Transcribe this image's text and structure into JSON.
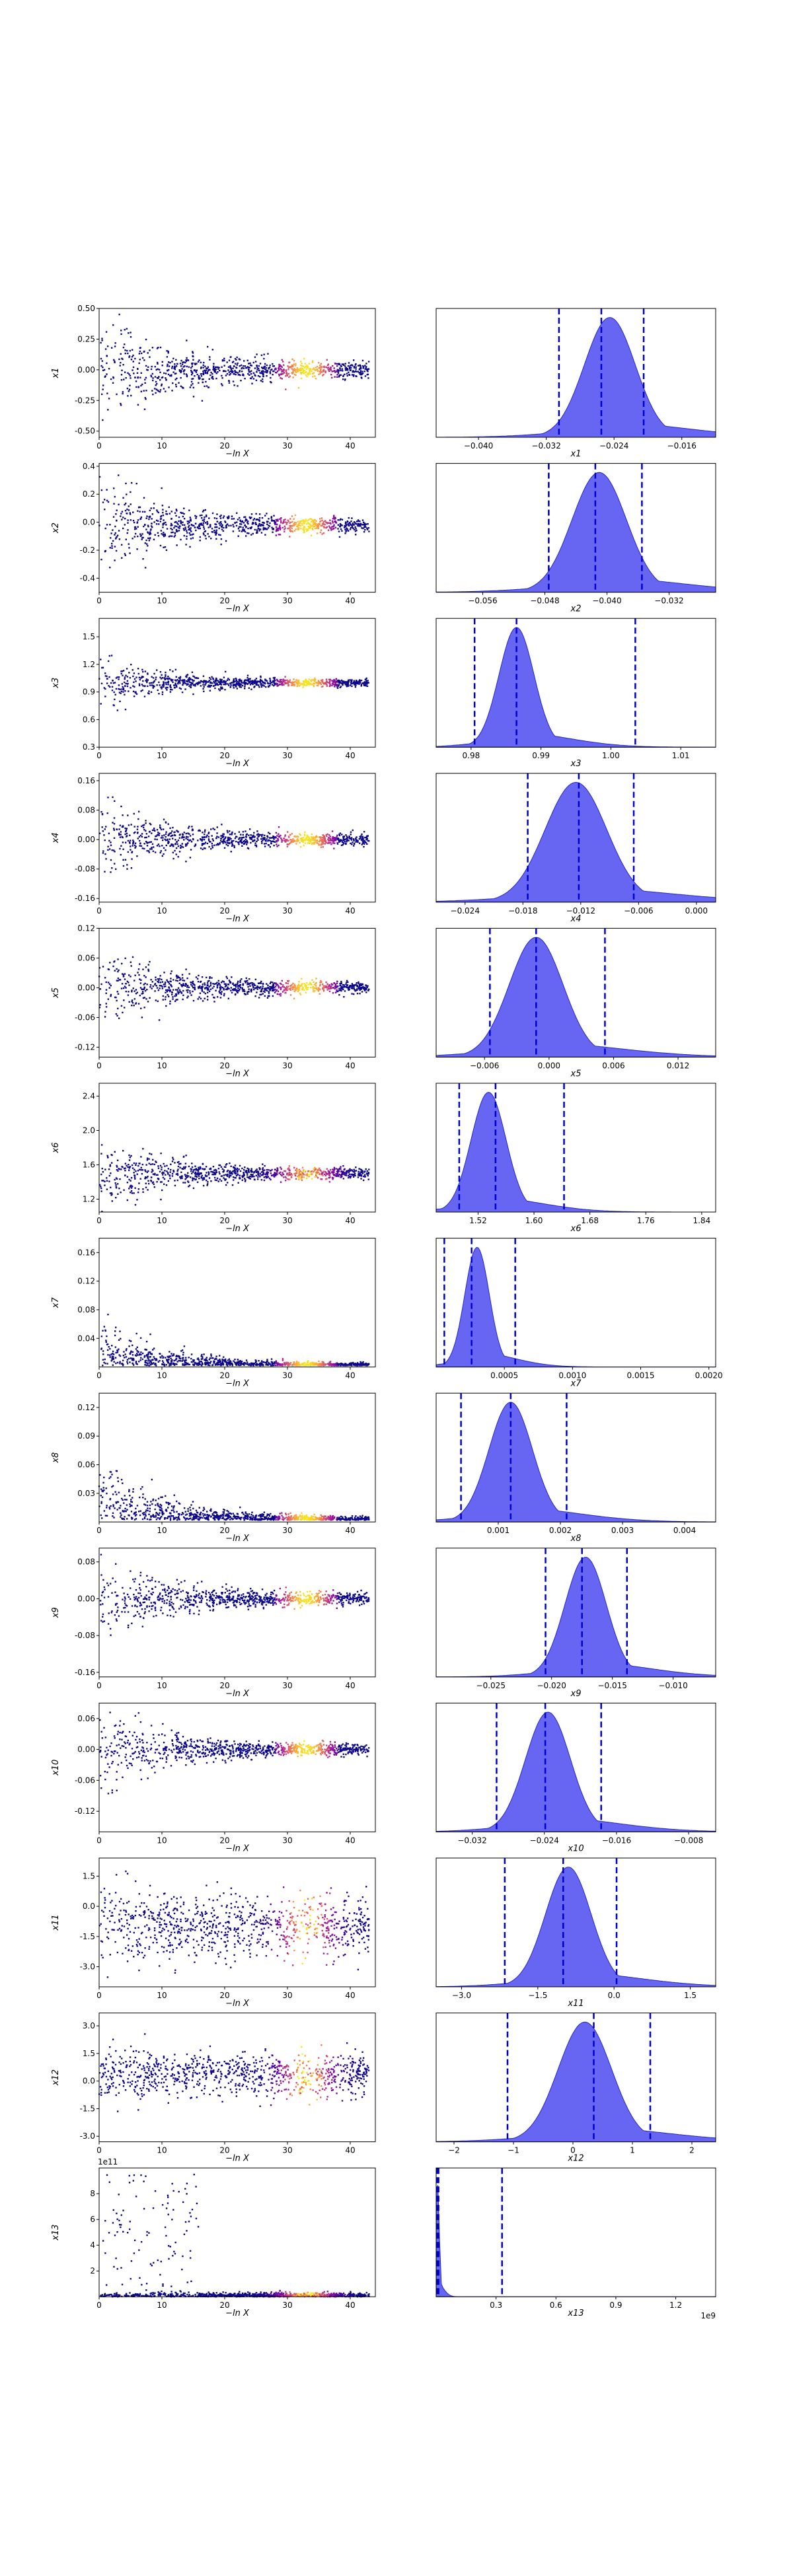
{
  "colors": {
    "trace_low": "#0d0887",
    "trace_mid": "#cc4778",
    "trace_high": "#f0f921",
    "kde_fill": "#3b3bf0",
    "kde_edge": "#2727c8",
    "quantile": "#0000cc"
  },
  "chart_data": {
    "type": "scatter",
    "description_free": true,
    "rows": [
      {
        "ylabel": "x1",
        "trace_yticks": [
          "0.50",
          "0.25",
          "0.00",
          "-0.25",
          "-0.50"
        ],
        "trace_yticks_val": [
          0.5,
          0.25,
          0,
          -0.25,
          -0.5
        ],
        "trace_ylim": [
          -0.55,
          0.5
        ],
        "trace_center": 0.0,
        "trace_spread": 0.25,
        "kde_xticks": [
          "−0.040",
          "−0.032",
          "−0.024",
          "−0.016"
        ],
        "kde_xticks_val": [
          -0.04,
          -0.032,
          -0.024,
          -0.016
        ],
        "kde_xlim": [
          -0.045,
          -0.012
        ],
        "kde_mode": -0.0245,
        "kde_sigma": 0.003,
        "quantiles": [
          -0.0305,
          -0.0255,
          -0.0205
        ],
        "kde_label": "x1"
      },
      {
        "ylabel": "x2",
        "trace_yticks": [
          "0.4",
          "0.2",
          "0.0",
          "-0.2",
          "-0.4"
        ],
        "trace_yticks_val": [
          0.4,
          0.2,
          0,
          -0.2,
          -0.4
        ],
        "trace_ylim": [
          -0.5,
          0.42
        ],
        "trace_center": -0.02,
        "trace_spread": 0.2,
        "kde_xticks": [
          "−0.056",
          "−0.048",
          "−0.040",
          "−0.032"
        ],
        "kde_xticks_val": [
          -0.056,
          -0.048,
          -0.04,
          -0.032
        ],
        "kde_xlim": [
          -0.062,
          -0.026
        ],
        "kde_mode": -0.041,
        "kde_sigma": 0.0035,
        "quantiles": [
          -0.0475,
          -0.0415,
          -0.0355
        ],
        "kde_label": "x2"
      },
      {
        "ylabel": "x3",
        "trace_yticks": [
          "1.5",
          "1.2",
          "0.9",
          "0.6",
          "0.3"
        ],
        "trace_yticks_val": [
          1.5,
          1.2,
          0.9,
          0.6,
          0.3
        ],
        "trace_ylim": [
          0.3,
          1.7
        ],
        "trace_center": 1.0,
        "trace_spread": 0.15,
        "kde_xticks": [
          "0.98",
          "0.99",
          "1.00",
          "1.01"
        ],
        "kde_xticks_val": [
          0.98,
          0.99,
          1.0,
          1.01
        ],
        "kde_xlim": [
          0.975,
          1.015
        ],
        "kde_mode": 0.9865,
        "kde_sigma": 0.0025,
        "quantiles": [
          0.9805,
          0.9865,
          1.0035
        ],
        "kde_label": "x3"
      },
      {
        "ylabel": "x4",
        "trace_yticks": [
          "0.16",
          "0.08",
          "0.00",
          "-0.08",
          "-0.16"
        ],
        "trace_yticks_val": [
          0.16,
          0.08,
          0,
          -0.08,
          -0.16
        ],
        "trace_ylim": [
          -0.17,
          0.18
        ],
        "trace_center": 0.0,
        "trace_spread": 0.06,
        "kde_xticks": [
          "−0.024",
          "−0.018",
          "−0.012",
          "−0.006",
          "0.000"
        ],
        "kde_xticks_val": [
          -0.024,
          -0.018,
          -0.012,
          -0.006,
          0
        ],
        "kde_xlim": [
          -0.027,
          0.002
        ],
        "kde_mode": -0.0125,
        "kde_sigma": 0.0032,
        "quantiles": [
          -0.0175,
          -0.0122,
          -0.0065
        ],
        "kde_label": "x4"
      },
      {
        "ylabel": "x5",
        "trace_yticks": [
          "0.12",
          "0.06",
          "0.00",
          "-0.06",
          "-0.12"
        ],
        "trace_yticks_val": [
          0.12,
          0.06,
          0,
          -0.06,
          -0.12
        ],
        "trace_ylim": [
          -0.14,
          0.12
        ],
        "trace_center": 0.0,
        "trace_spread": 0.045,
        "kde_xticks": [
          "−0.006",
          "0.000",
          "0.006",
          "0.012"
        ],
        "kde_xticks_val": [
          -0.006,
          0,
          0.006,
          0.012
        ],
        "kde_xlim": [
          -0.0105,
          0.0155
        ],
        "kde_mode": -0.0012,
        "kde_sigma": 0.0025,
        "quantiles": [
          -0.0055,
          -0.0012,
          0.0052
        ],
        "kde_label": "x5"
      },
      {
        "ylabel": "x6",
        "trace_yticks": [
          "2.4",
          "2.0",
          "1.6",
          "1.2"
        ],
        "trace_yticks_val": [
          2.4,
          2.0,
          1.6,
          1.2
        ],
        "trace_ylim": [
          1.05,
          2.55
        ],
        "trace_center": 1.5,
        "trace_spread": 0.25,
        "kde_xticks": [
          "1.52",
          "1.60",
          "1.68",
          "1.76",
          "1.84"
        ],
        "kde_xticks_val": [
          1.52,
          1.6,
          1.68,
          1.76,
          1.84
        ],
        "kde_xlim": [
          1.46,
          1.86
        ],
        "kde_mode": 1.535,
        "kde_sigma": 0.025,
        "quantiles": [
          1.493,
          1.545,
          1.643
        ],
        "kde_label": "x6"
      },
      {
        "ylabel": "x7",
        "trace_yticks": [
          "0.16",
          "0.12",
          "0.08",
          "0.04"
        ],
        "trace_yticks_val": [
          0.16,
          0.12,
          0.08,
          0.04
        ],
        "trace_ylim": [
          0.0,
          0.18
        ],
        "trace_center": 0.003,
        "trace_spread": 0.03,
        "kde_xticks": [
          "0.0005",
          "0.0010",
          "0.0015",
          "0.0020"
        ],
        "kde_xticks_val": [
          0.0005,
          0.001,
          0.0015,
          0.002
        ],
        "kde_xlim": [
          0.0,
          0.00205
        ],
        "kde_mode": 0.0003,
        "kde_sigma": 9e-05,
        "quantiles": [
          6e-05,
          0.00026,
          0.00058
        ],
        "kde_label": "x7"
      },
      {
        "ylabel": "x8",
        "trace_yticks": [
          "0.12",
          "0.09",
          "0.06",
          "0.03"
        ],
        "trace_yticks_val": [
          0.12,
          0.09,
          0.06,
          0.03
        ],
        "trace_ylim": [
          0.0,
          0.135
        ],
        "trace_center": 0.003,
        "trace_spread": 0.03,
        "kde_xticks": [
          "0.001",
          "0.002",
          "0.003",
          "0.004"
        ],
        "kde_xticks_val": [
          0.001,
          0.002,
          0.003,
          0.004
        ],
        "kde_xlim": [
          0.0,
          0.0045
        ],
        "kde_mode": 0.0012,
        "kde_sigma": 0.00035,
        "quantiles": [
          0.0004,
          0.0012,
          0.0021
        ],
        "kde_label": "x8"
      },
      {
        "ylabel": "x9",
        "trace_yticks": [
          "0.08",
          "0.00",
          "-0.08",
          "-0.16"
        ],
        "trace_yticks_val": [
          0.08,
          0,
          -0.08,
          -0.16
        ],
        "trace_ylim": [
          -0.17,
          0.11
        ],
        "trace_center": 0.0,
        "trace_spread": 0.05,
        "kde_xticks": [
          "−0.025",
          "−0.020",
          "−0.015",
          "−0.010"
        ],
        "kde_xticks_val": [
          -0.025,
          -0.02,
          -0.015,
          -0.01
        ],
        "kde_xlim": [
          -0.0295,
          -0.0065
        ],
        "kde_mode": -0.0172,
        "kde_sigma": 0.0017,
        "quantiles": [
          -0.0205,
          -0.0175,
          -0.0138
        ],
        "kde_label": "x9"
      },
      {
        "ylabel": "x10",
        "trace_yticks": [
          "0.06",
          "0.00",
          "-0.06",
          "-0.12"
        ],
        "trace_yticks_val": [
          0.06,
          0,
          -0.06,
          -0.12
        ],
        "trace_ylim": [
          -0.16,
          0.09
        ],
        "trace_center": 0.0,
        "trace_spread": 0.045,
        "kde_xticks": [
          "−0.032",
          "−0.024",
          "−0.016",
          "−0.008"
        ],
        "kde_xticks_val": [
          -0.032,
          -0.024,
          -0.016,
          -0.008
        ],
        "kde_xlim": [
          -0.036,
          -0.005
        ],
        "kde_mode": -0.0236,
        "kde_sigma": 0.0025,
        "quantiles": [
          -0.0293,
          -0.0239,
          -0.0177
        ],
        "kde_label": "x10"
      },
      {
        "ylabel": "x11",
        "trace_yticks": [
          "1.5",
          "0.0",
          "-1.5",
          "-3.0"
        ],
        "trace_yticks_val": [
          1.5,
          0,
          -1.5,
          -3.0
        ],
        "trace_ylim": [
          -4.0,
          2.4
        ],
        "trace_center": -1.0,
        "trace_spread": 1.1,
        "kde_xticks": [
          "−3.0",
          "−1.5",
          "0.0",
          "1.5"
        ],
        "kde_xticks_val": [
          -3,
          -1.5,
          0,
          1.5
        ],
        "kde_xlim": [
          -3.5,
          2.0
        ],
        "kde_mode": -0.9,
        "kde_sigma": 0.45,
        "quantiles": [
          -2.15,
          -1.0,
          0.05
        ],
        "kde_label": "x11"
      },
      {
        "ylabel": "x12",
        "trace_yticks": [
          "3.0",
          "1.5",
          "0.0",
          "-1.5",
          "-3.0"
        ],
        "trace_yticks_val": [
          3,
          1.5,
          0,
          -1.5,
          -3
        ],
        "trace_ylim": [
          -3.3,
          3.7
        ],
        "trace_center": 0.3,
        "trace_spread": 0.8,
        "kde_xticks": [
          "−2",
          "−1",
          "0",
          "1",
          "2"
        ],
        "kde_xticks_val": [
          -2,
          -1,
          0,
          1,
          2
        ],
        "kde_xlim": [
          -2.3,
          2.4
        ],
        "kde_mode": 0.2,
        "kde_sigma": 0.45,
        "quantiles": [
          -1.1,
          0.35,
          1.3
        ],
        "kde_label": "x12"
      },
      {
        "ylabel": "x13",
        "trace_yticks": [
          "8",
          "6",
          "4",
          "2"
        ],
        "trace_yticks_val": [
          8,
          6,
          4,
          2
        ],
        "trace_ylim": [
          0,
          10
        ],
        "trace_center": 0.0,
        "trace_spread": 0.2,
        "trace_offset": "1e11",
        "kde_xticks": [
          "0.3",
          "0.6",
          "0.9",
          "1.2"
        ],
        "kde_xticks_val": [
          0.3,
          0.6,
          0.9,
          1.2
        ],
        "kde_xlim": [
          0,
          1.4
        ],
        "kde_mode": 0.005,
        "kde_sigma": 0.01,
        "quantiles": [
          0.005,
          0.012,
          0.33
        ],
        "kde_label": "x13",
        "kde_offset": "1e9"
      }
    ],
    "trace_xticks": [
      "0",
      "10",
      "20",
      "30",
      "40"
    ],
    "trace_xticks_val": [
      0,
      10,
      20,
      30,
      40
    ],
    "trace_xlim": [
      0,
      44
    ],
    "trace_xlabel": "−ln X"
  }
}
